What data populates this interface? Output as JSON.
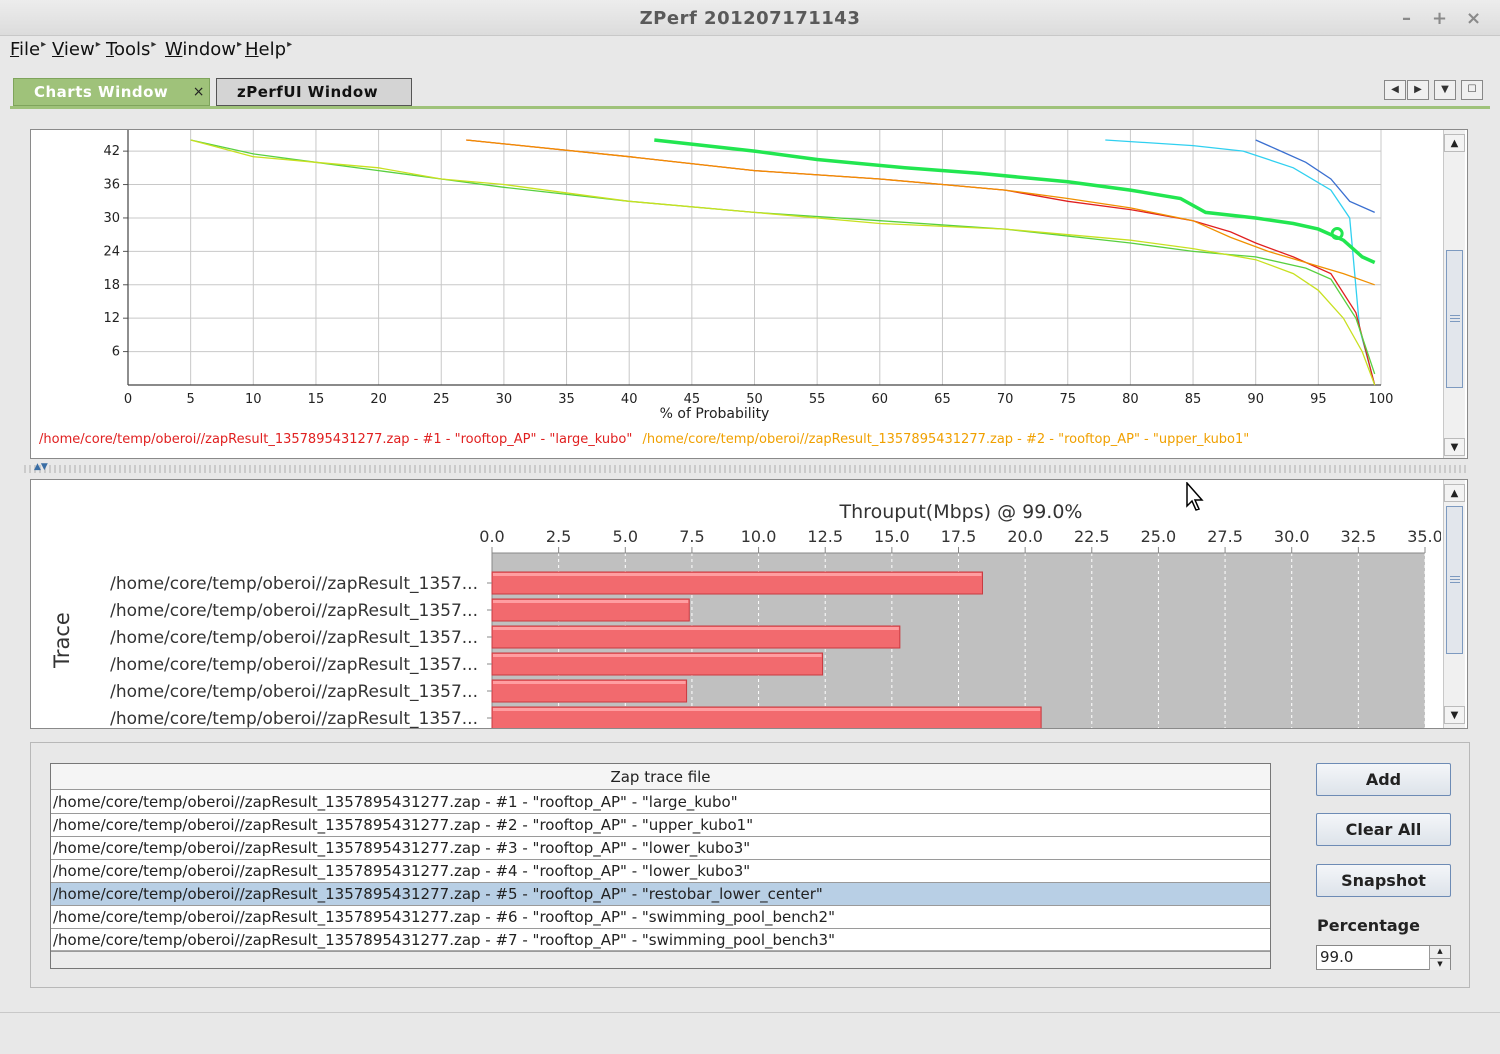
{
  "window": {
    "title": "ZPerf 201207171143",
    "minimize": "–",
    "maximize": "+",
    "close": "×"
  },
  "menu": [
    {
      "name": "menu-file",
      "label": "File",
      "left": 10
    },
    {
      "name": "menu-view",
      "label": "View",
      "left": 52
    },
    {
      "name": "menu-tools",
      "label": "Tools",
      "left": 106
    },
    {
      "name": "menu-window",
      "label": "Window",
      "left": 165
    },
    {
      "name": "menu-help",
      "label": "Help",
      "left": 245
    }
  ],
  "tabs": {
    "active": "Charts Window",
    "inactive": "zPerfUI Window",
    "close": "×"
  },
  "top_chart": {
    "xlabel": "% of Probability",
    "x_ticks": [
      "0",
      "5",
      "10",
      "15",
      "20",
      "25",
      "30",
      "35",
      "40",
      "45",
      "50",
      "55",
      "60",
      "65",
      "70",
      "75",
      "80",
      "85",
      "90",
      "95",
      "100"
    ],
    "y_ticks": [
      "42",
      "36",
      "30",
      "24",
      "18",
      "12",
      "6"
    ],
    "legend": [
      {
        "text": "/home/core/temp/oberoi//zapResult_1357895431277.zap - #1 - \"rooftop_AP\" - \"large_kubo\"",
        "color": "#e02020"
      },
      {
        "text": "/home/core/temp/oberoi//zapResult_1357895431277.zap - #2 - \"rooftop_AP\" - \"upper_kubo1\"",
        "color": "#f0a000"
      }
    ]
  },
  "chart_data": {
    "type": "bar",
    "title": "Throuput(Mbps) @ 99.0%",
    "ylabel": "Trace",
    "xlim": [
      0,
      35
    ],
    "x_ticks": [
      "0.0",
      "2.5",
      "5.0",
      "7.5",
      "10.0",
      "12.5",
      "15.0",
      "17.5",
      "20.0",
      "22.5",
      "25.0",
      "27.5",
      "30.0",
      "32.5",
      "35.0"
    ],
    "categories": [
      "/home/core/temp/oberoi//zapResult_1357...",
      "/home/core/temp/oberoi//zapResult_1357...",
      "/home/core/temp/oberoi//zapResult_1357...",
      "/home/core/temp/oberoi//zapResult_1357...",
      "/home/core/temp/oberoi//zapResult_1357...",
      "/home/core/temp/oberoi//zapResult_1357..."
    ],
    "values": [
      18.4,
      7.4,
      15.3,
      12.4,
      7.3,
      20.6
    ],
    "bar_color": "#f26a6e",
    "plot_bg": "#c0c0c0"
  },
  "table": {
    "header": "Zap trace file",
    "rows": [
      "/home/core/temp/oberoi//zapResult_1357895431277.zap - #1 - \"rooftop_AP\" - \"large_kubo\"",
      "/home/core/temp/oberoi//zapResult_1357895431277.zap - #2 - \"rooftop_AP\" - \"upper_kubo1\"",
      "/home/core/temp/oberoi//zapResult_1357895431277.zap - #3 - \"rooftop_AP\" - \"lower_kubo3\"",
      "/home/core/temp/oberoi//zapResult_1357895431277.zap - #4 - \"rooftop_AP\" - \"lower_kubo3\"",
      "/home/core/temp/oberoi//zapResult_1357895431277.zap - #5 - \"rooftop_AP\" - \"restobar_lower_center\"",
      "/home/core/temp/oberoi//zapResult_1357895431277.zap - #6 - \"rooftop_AP\" - \"swimming_pool_bench2\"",
      "/home/core/temp/oberoi//zapResult_1357895431277.zap - #7 - \"rooftop_AP\" - \"swimming_pool_bench3\""
    ],
    "selected_index": 4
  },
  "buttons": {
    "add": "Add",
    "clear_all": "Clear All",
    "snapshot": "Snapshot"
  },
  "percentage": {
    "label": "Percentage",
    "value": "99.0"
  }
}
